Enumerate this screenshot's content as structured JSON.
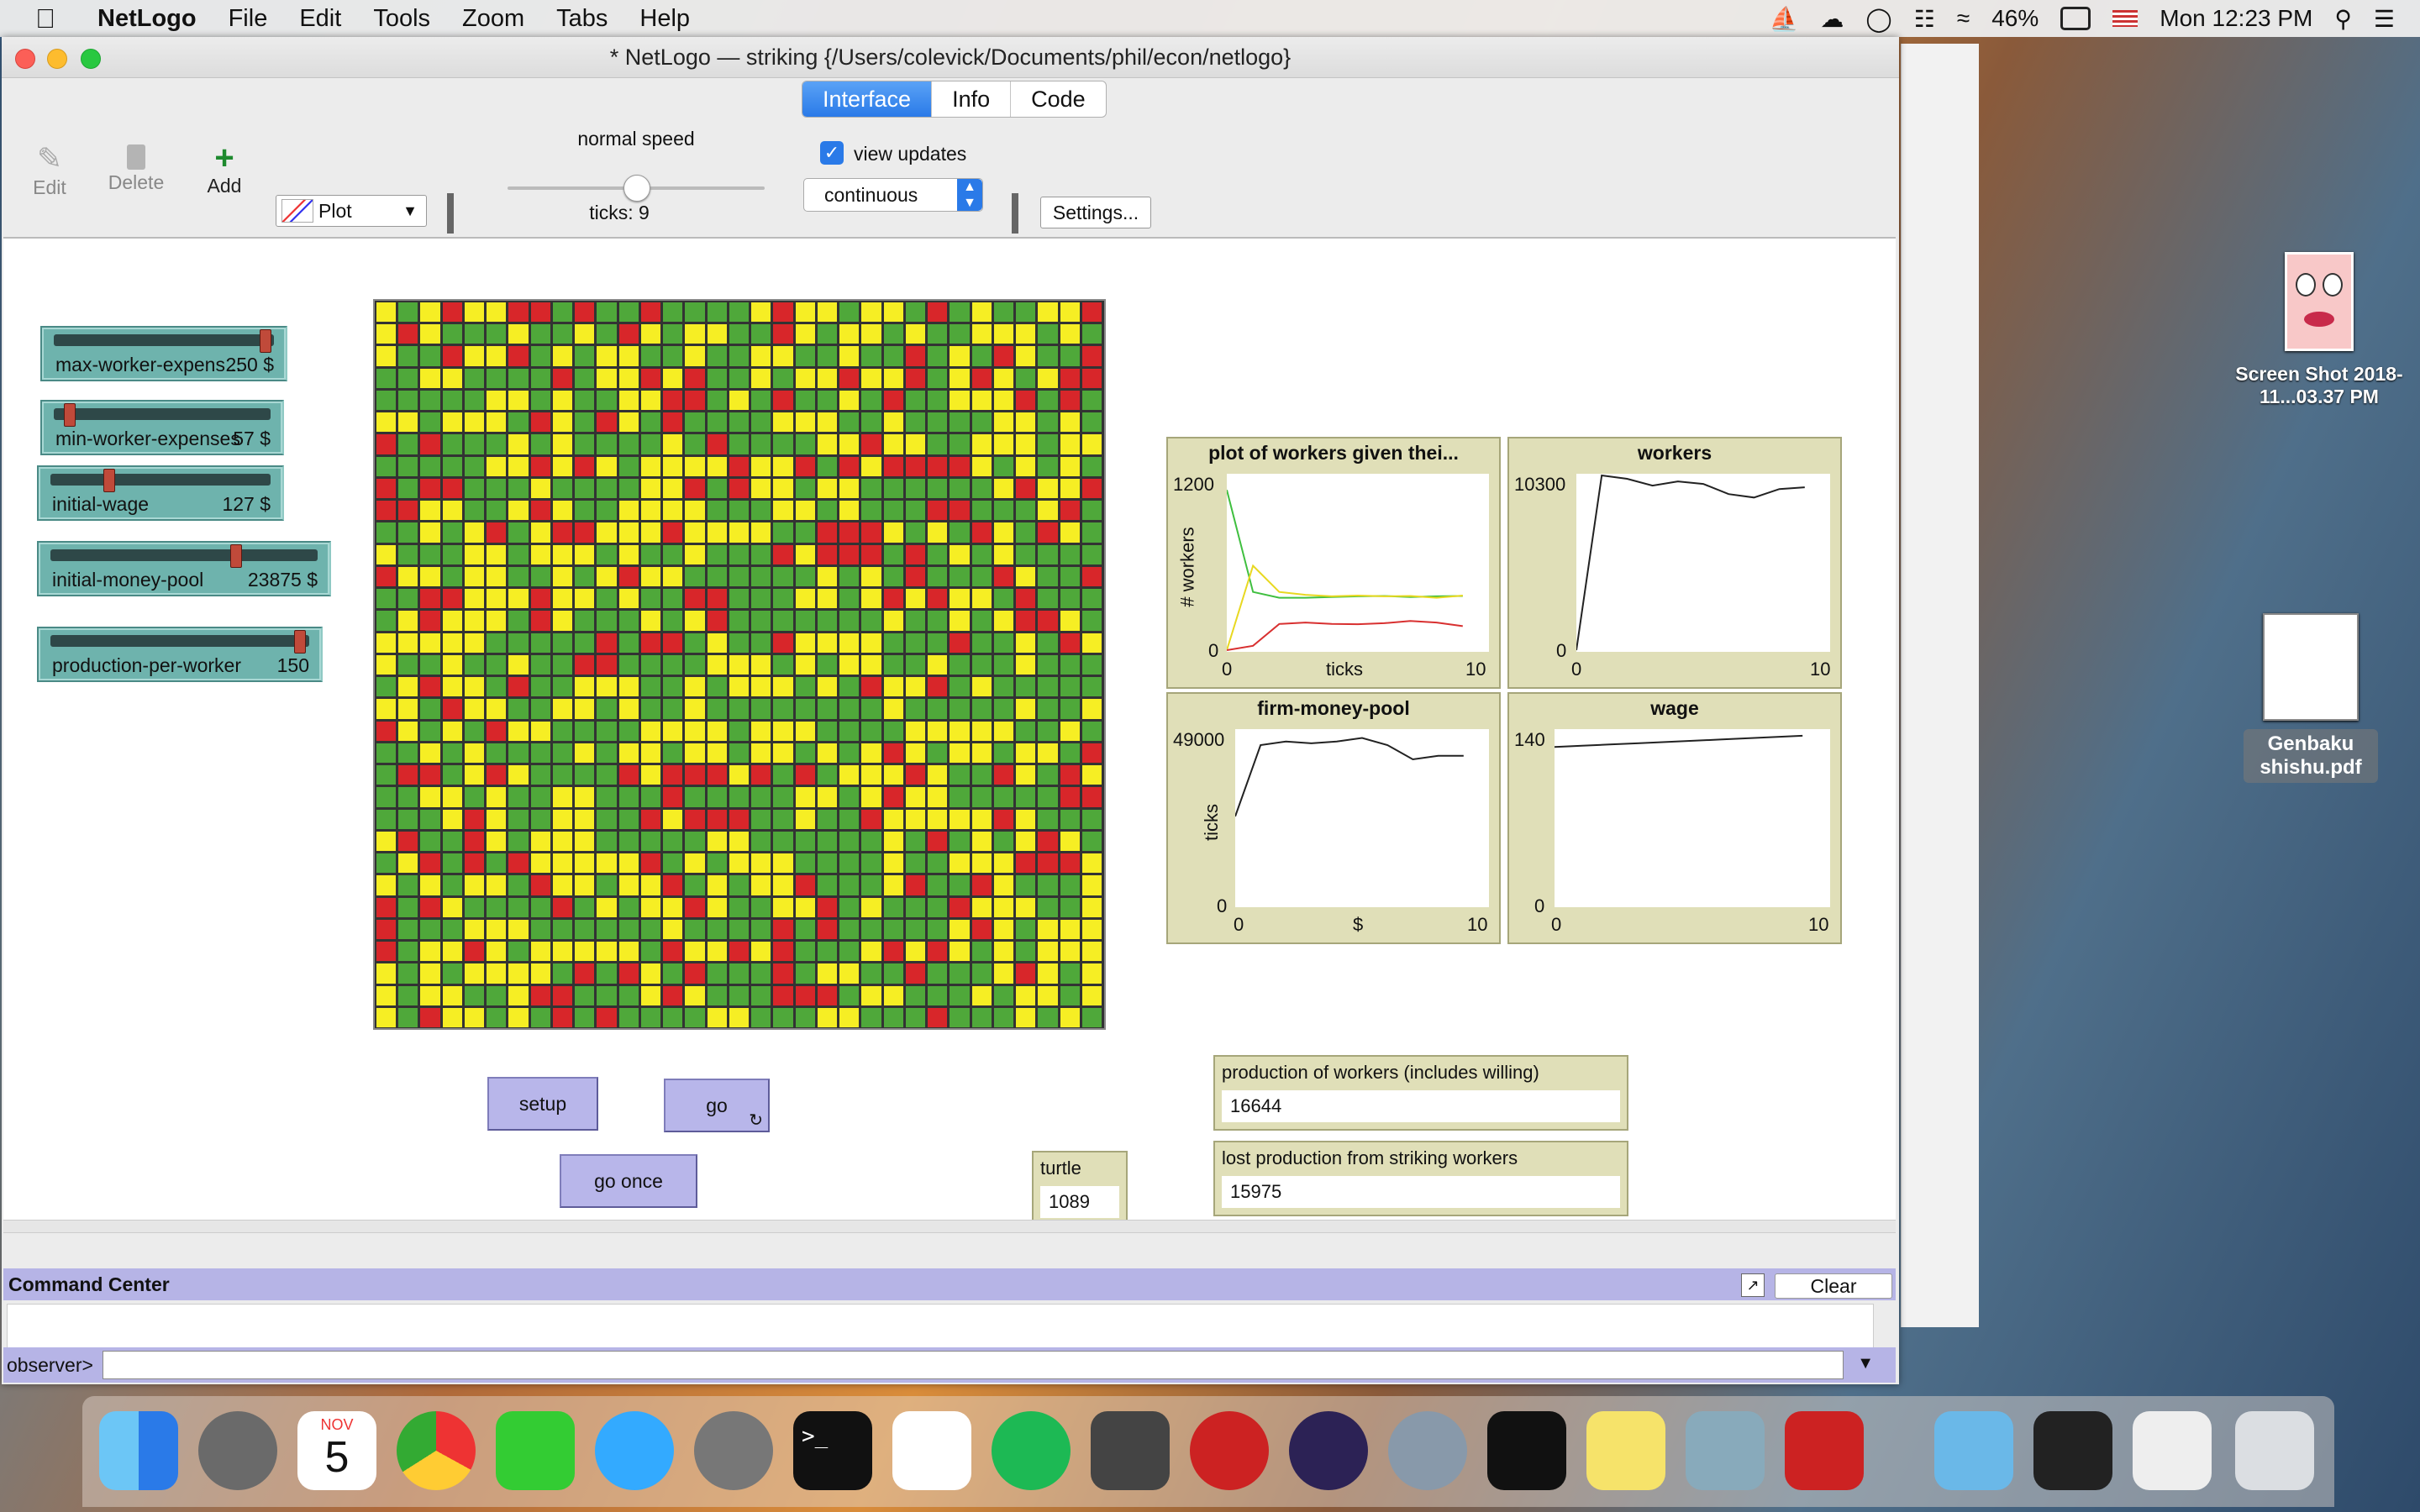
{
  "menubar": {
    "app_name": "NetLogo",
    "items": [
      "File",
      "Edit",
      "Tools",
      "Zoom",
      "Tabs",
      "Help"
    ],
    "battery": "46%",
    "clock": "Mon 12:23 PM"
  },
  "window": {
    "title": "* NetLogo — striking {/Users/colevick/Documents/phil/econ/netlogo}",
    "tabs": [
      "Interface",
      "Info",
      "Code"
    ],
    "active_tab": "Interface"
  },
  "toolbar": {
    "edit_label": "Edit",
    "delete_label": "Delete",
    "add_label": "Add",
    "widget_select": "Plot",
    "speed_label": "normal speed",
    "speed_value": 0.5,
    "ticks_label": "ticks: 9",
    "view_updates_label": "view updates",
    "view_updates_checked": true,
    "update_mode": "continuous",
    "settings_label": "Settings..."
  },
  "sliders": [
    {
      "label": "max-worker-expens...",
      "value": "250 $",
      "level": 0.98
    },
    {
      "label": "min-worker-expenses",
      "value": "57 $",
      "level": 0.05
    },
    {
      "label": "initial-wage",
      "value": "127 $",
      "level": 0.25
    },
    {
      "label": "initial-money-pool",
      "value": "23875 $",
      "level": 0.7
    },
    {
      "label": "production-per-worker",
      "value": "150",
      "level": 0.98
    }
  ],
  "patch_colors": {
    "green": "#4fa83a",
    "yellow": "#f6ee24",
    "red": "#d8262a"
  },
  "buttons": {
    "setup": "setup",
    "go": "go",
    "go_once": "go once"
  },
  "monitors": {
    "turtle_label": "turtle",
    "turtle_value": "1089",
    "production_label": "production of workers (includes willing)",
    "production_value": "16644",
    "lost_label": "lost production from striking workers",
    "lost_value": "15975"
  },
  "plots": [
    {
      "title": "plot of workers given thei...",
      "ymax": "1200",
      "ymin": "0",
      "xmin": "0",
      "xmax": "10",
      "xlabel": "ticks",
      "ylabel": "# workers",
      "chart_data": {
        "type": "line",
        "x": [
          0,
          1,
          2,
          3,
          4,
          5,
          6,
          7,
          8,
          9
        ],
        "xlim": [
          0,
          10
        ],
        "ylim": [
          0,
          1200
        ],
        "series": [
          {
            "color": "#3fbf3f",
            "values": [
              1100,
              400,
              360,
              360,
              365,
              370,
              372,
              365,
              370,
              372
            ]
          },
          {
            "color": "#e8d820",
            "values": [
              0,
              580,
              400,
              380,
              370,
              375,
              370,
              372,
              360,
              375
            ]
          },
          {
            "color": "#d83030",
            "values": [
              0,
              30,
              180,
              190,
              180,
              178,
              185,
              200,
              190,
              165
            ]
          }
        ]
      }
    },
    {
      "title": "workers",
      "ymax": "10300",
      "ymin": "0",
      "xmin": "0",
      "xmax": "10",
      "chart_data": {
        "type": "line",
        "x": [
          0,
          1,
          2,
          3,
          4,
          5,
          6,
          7,
          8,
          9
        ],
        "xlim": [
          0,
          10
        ],
        "ylim": [
          0,
          10300
        ],
        "series": [
          {
            "color": "#222222",
            "values": [
              0,
              10300,
              10100,
              9700,
              9950,
              9800,
              9200,
              9000,
              9500,
              9600
            ]
          }
        ]
      }
    },
    {
      "title": "firm-money-pool",
      "ymax": "49000",
      "ymin": "0",
      "xmin": "0",
      "xmax": "10",
      "xlabel": "$",
      "ylabel": "ticks",
      "chart_data": {
        "type": "line",
        "x": [
          0,
          1,
          2,
          3,
          4,
          5,
          6,
          7,
          8,
          9
        ],
        "xlim": [
          0,
          10
        ],
        "ylim": [
          0,
          49000
        ],
        "series": [
          {
            "color": "#222222",
            "values": [
              25000,
              45000,
              46000,
              45500,
              46000,
              47000,
              45000,
              41000,
              42000,
              42000
            ]
          }
        ]
      }
    },
    {
      "title": "wage",
      "ymax": "140",
      "ymin": "0",
      "xmin": "0",
      "xmax": "10",
      "chart_data": {
        "type": "line",
        "x": [
          0,
          1,
          2,
          3,
          4,
          5,
          6,
          7,
          8,
          9
        ],
        "xlim": [
          0,
          10
        ],
        "ylim": [
          0,
          140
        ],
        "series": [
          {
            "color": "#222222",
            "values": [
              127,
              128,
              129,
              130,
              131,
              132,
              133,
              134,
              135,
              136
            ]
          }
        ]
      }
    }
  ],
  "command_center": {
    "title": "Command Center",
    "clear_label": "Clear",
    "observer_label": "observer>"
  },
  "desktop": {
    "file1_name": "Screen Shot 2018-11...03.37 PM",
    "file2_name": "Genbaku shishu.pdf"
  },
  "dock": {
    "calendar_month": "NOV",
    "calendar_day": "5"
  }
}
